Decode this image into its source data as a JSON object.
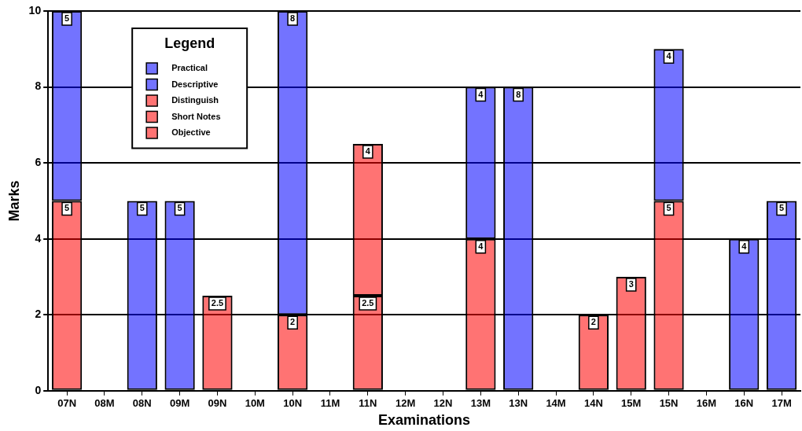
{
  "chart_data": {
    "type": "bar",
    "stacked": true,
    "xlabel": "Examinations",
    "ylabel": "Marks",
    "legend_title": "Legend",
    "categories": [
      "07N",
      "08M",
      "08N",
      "09M",
      "09N",
      "10M",
      "10N",
      "11M",
      "11N",
      "12M",
      "12N",
      "13M",
      "13N",
      "14M",
      "14N",
      "15M",
      "15N",
      "16M",
      "16N",
      "17M"
    ],
    "series": [
      {
        "name": "Objective",
        "color": "#ff0000",
        "values": [
          null,
          null,
          null,
          null,
          null,
          null,
          null,
          null,
          null,
          null,
          null,
          null,
          null,
          null,
          null,
          null,
          null,
          null,
          null,
          null
        ]
      },
      {
        "name": "Short Notes",
        "color": "#ff0000",
        "values": [
          5,
          null,
          null,
          null,
          2.5,
          null,
          2,
          null,
          2.5,
          null,
          null,
          null,
          null,
          null,
          2,
          3,
          5,
          null,
          null,
          null
        ]
      },
      {
        "name": "Distinguish",
        "color": "#ff0000",
        "values": [
          null,
          null,
          null,
          null,
          null,
          null,
          null,
          null,
          4,
          null,
          null,
          4,
          null,
          null,
          null,
          null,
          null,
          null,
          null,
          null
        ]
      },
      {
        "name": "Descriptive",
        "color": "#0000ff",
        "values": [
          5,
          null,
          5,
          5,
          null,
          null,
          8,
          null,
          null,
          null,
          null,
          4,
          8,
          null,
          null,
          null,
          4,
          null,
          4,
          5
        ]
      },
      {
        "name": "Practical",
        "color": "#0000ff",
        "values": [
          null,
          null,
          null,
          null,
          null,
          null,
          null,
          null,
          null,
          null,
          null,
          null,
          null,
          null,
          null,
          null,
          null,
          null,
          null,
          null
        ]
      }
    ],
    "ylim": [
      0,
      10
    ],
    "yticks": [
      0,
      2,
      4,
      6,
      8,
      10
    ],
    "grid": "y",
    "legend": "top left",
    "data_labels": true
  }
}
